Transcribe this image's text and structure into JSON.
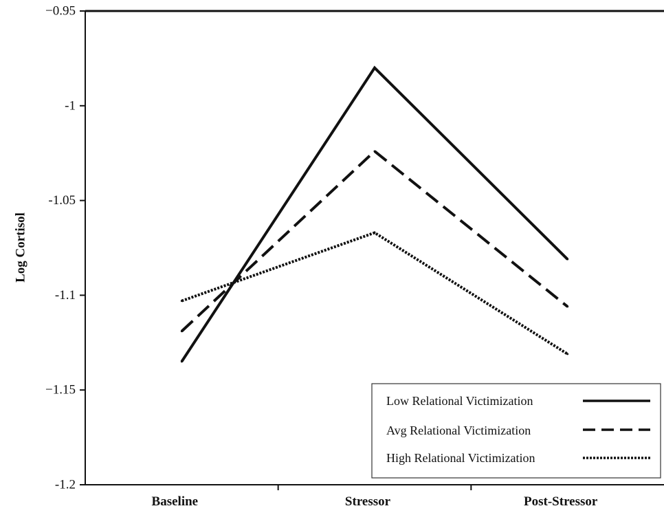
{
  "chart_data": {
    "type": "line",
    "title": "",
    "xlabel": "",
    "ylabel": "Log Cortisol",
    "categories": [
      "Baseline",
      "Stressor",
      "Post-Stressor"
    ],
    "ylim": [
      -1.2,
      -0.95
    ],
    "yticks": [
      -0.95,
      -1,
      -1.05,
      -1.1,
      -1.15,
      -1.2
    ],
    "ytick_labels": [
      "−0.95",
      "-1",
      "-1.05",
      "-1.1",
      "−1.15",
      "-1.2"
    ],
    "grid": false,
    "legend_position": "bottom-right",
    "series": [
      {
        "name": "Low Relational Victimization",
        "style": "solid",
        "color": "#111111",
        "values": [
          -1.135,
          -0.98,
          -1.081
        ]
      },
      {
        "name": "Avg Relational Victimization",
        "style": "dashed",
        "color": "#111111",
        "values": [
          -1.119,
          -1.024,
          -1.106
        ]
      },
      {
        "name": "High Relational Victimization",
        "style": "dotted",
        "color": "#111111",
        "values": [
          -1.103,
          -1.067,
          -1.131
        ]
      }
    ]
  }
}
